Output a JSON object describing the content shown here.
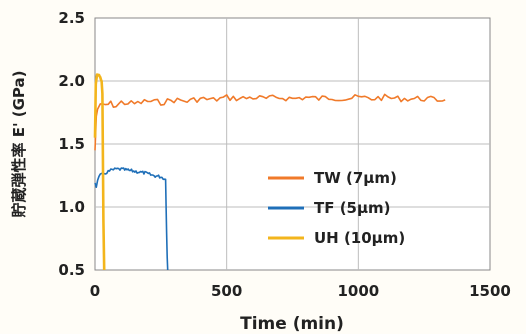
{
  "chart_data": {
    "type": "line",
    "title": "",
    "xlabel": "Time (min)",
    "ylabel": "貯蔵弾性率 E' (GPa)",
    "xlim": [
      0,
      1500
    ],
    "ylim": [
      0.5,
      2.5
    ],
    "x_ticks": [
      "0",
      "500",
      "1000",
      "1500"
    ],
    "y_ticks": [
      "0.5",
      "1.0",
      "1.5",
      "2.0",
      "2.5"
    ],
    "grid": true,
    "legend_position": "center-right",
    "series": [
      {
        "name": "TW (7μm)",
        "color": "#f07a2a",
        "x": [
          0,
          5,
          10,
          20,
          40,
          60,
          80,
          100,
          150,
          200,
          250,
          300,
          350,
          400,
          450,
          500,
          550,
          600,
          650,
          700,
          750,
          800,
          850,
          900,
          950,
          1000,
          1050,
          1100,
          1150,
          1200,
          1250,
          1300,
          1330
        ],
        "y": [
          1.45,
          1.72,
          1.78,
          1.8,
          1.81,
          1.82,
          1.8,
          1.83,
          1.82,
          1.84,
          1.83,
          1.85,
          1.84,
          1.86,
          1.85,
          1.87,
          1.86,
          1.87,
          1.86,
          1.87,
          1.86,
          1.87,
          1.86,
          1.87,
          1.86,
          1.87,
          1.86,
          1.87,
          1.86,
          1.86,
          1.86,
          1.85,
          1.85
        ]
      },
      {
        "name": "TF (5μm)",
        "color": "#1f6fb8",
        "x": [
          0,
          5,
          10,
          20,
          40,
          60,
          80,
          100,
          130,
          160,
          190,
          220,
          250,
          268,
          270,
          272,
          274,
          276
        ],
        "y": [
          1.2,
          1.15,
          1.22,
          1.25,
          1.27,
          1.29,
          1.3,
          1.3,
          1.29,
          1.28,
          1.27,
          1.25,
          1.24,
          1.22,
          1.0,
          0.8,
          0.6,
          0.5
        ]
      },
      {
        "name": "UH (10μm)",
        "color": "#f3b51c",
        "x": [
          0,
          3,
          8,
          15,
          20,
          25,
          28,
          30,
          32,
          35
        ],
        "y": [
          1.55,
          1.98,
          2.05,
          2.05,
          2.03,
          2.0,
          1.9,
          1.4,
          0.9,
          0.5
        ]
      }
    ]
  }
}
